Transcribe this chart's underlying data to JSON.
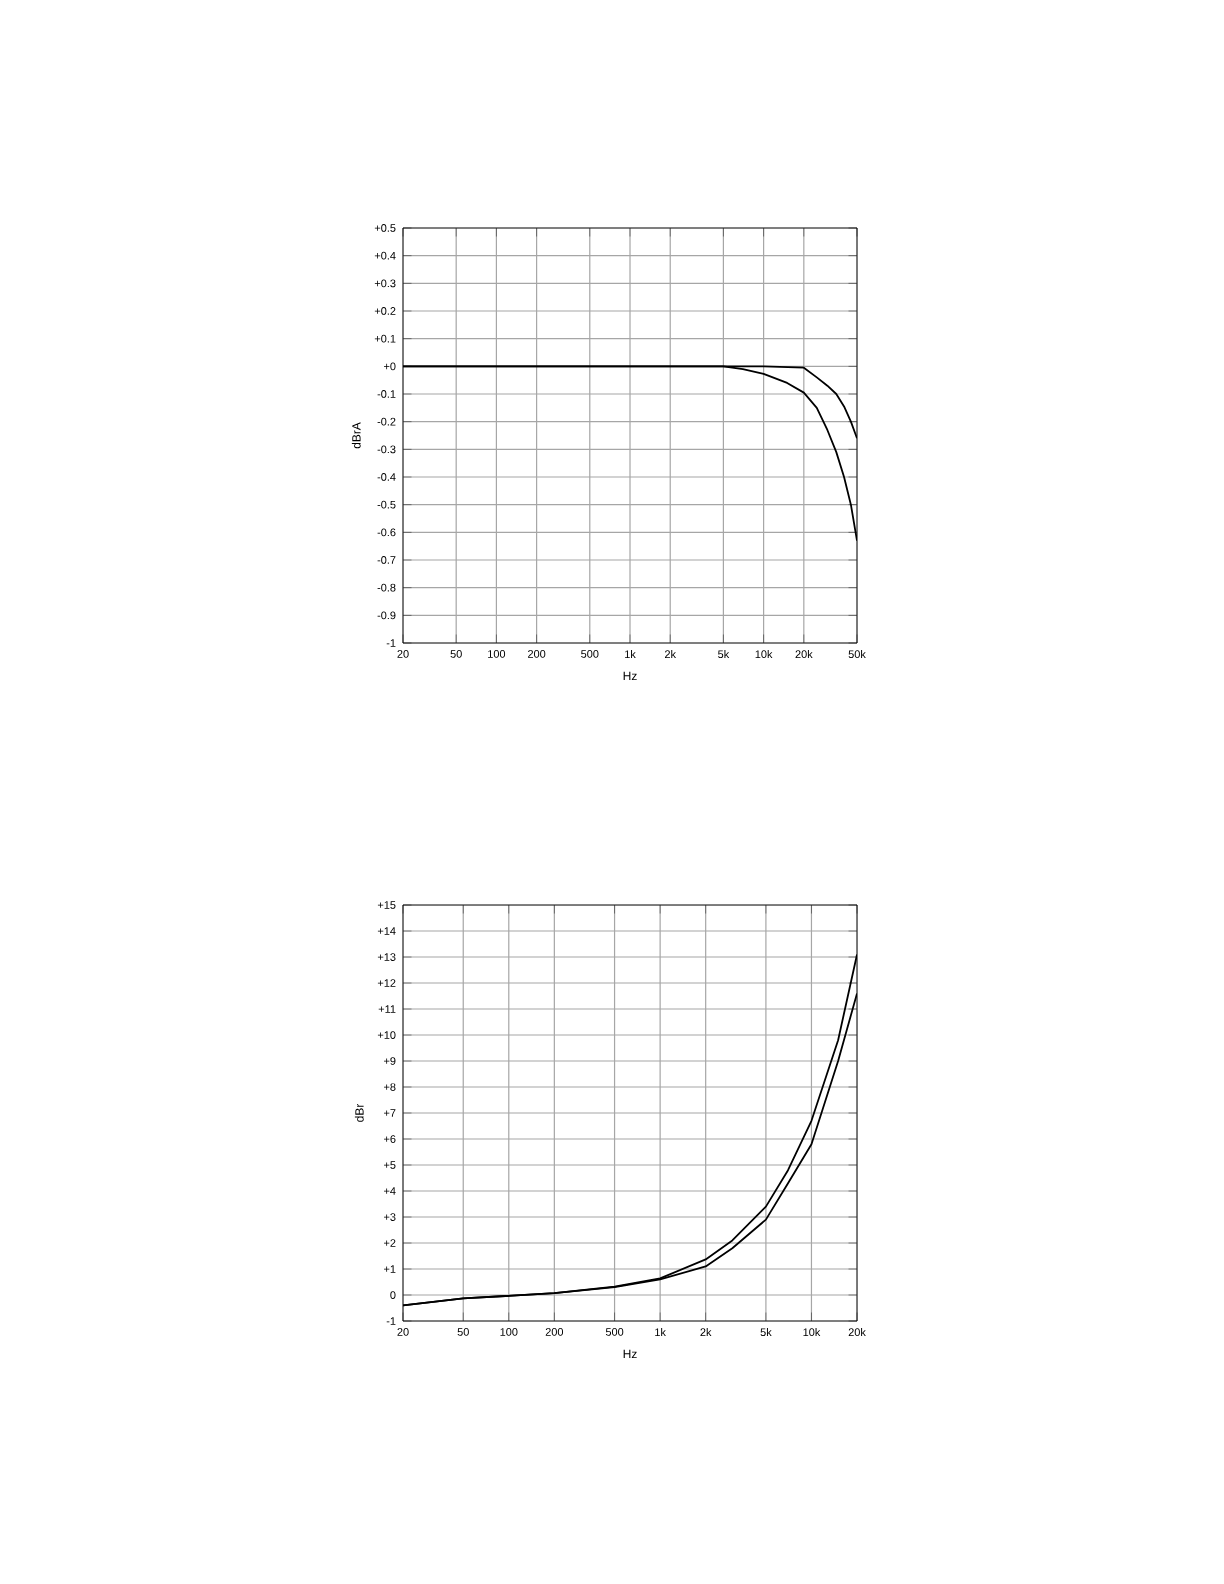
{
  "chart_data": [
    {
      "type": "line",
      "xlabel": "Hz",
      "ylabel": "dBrA",
      "log": "x",
      "grid": true,
      "line_style": "solid",
      "xlim": [
        20,
        50000
      ],
      "ylim": [
        -1,
        0.5
      ],
      "xticks": [
        20,
        50,
        100,
        200,
        500,
        {
          "value": 1000,
          "label": "1k"
        },
        {
          "value": 2000,
          "label": "2k"
        },
        {
          "value": 5000,
          "label": "5k"
        },
        {
          "value": 10000,
          "label": "10k"
        },
        {
          "value": 20000,
          "label": "20k"
        },
        {
          "value": 50000,
          "label": "50k"
        }
      ],
      "yticks": [
        {
          "value": 0.5,
          "label": "+0.5"
        },
        {
          "value": 0.4,
          "label": "+0.4"
        },
        {
          "value": 0.3,
          "label": "+0.3"
        },
        {
          "value": 0.2,
          "label": "+0.2"
        },
        {
          "value": 0.1,
          "label": "+0.1"
        },
        {
          "value": 0,
          "label": "+0"
        },
        -0.1,
        -0.2,
        -0.3,
        -0.4,
        -0.5,
        -0.6,
        -0.7,
        -0.8,
        -0.9,
        -1
      ],
      "series": [
        {
          "color": "#000000",
          "x": [
            20,
            100,
            1000,
            5000,
            7000,
            10000,
            15000,
            20000,
            25000,
            30000,
            35000,
            40000,
            45000,
            50000
          ],
          "values": [
            0,
            0,
            0,
            0,
            -0.01,
            -0.027,
            -0.06,
            -0.095,
            -0.15,
            -0.23,
            -0.31,
            -0.4,
            -0.5,
            -0.63
          ]
        },
        {
          "color": "#000000",
          "x": [
            20,
            1000,
            10000,
            20000,
            25000,
            30000,
            35000,
            40000,
            45000,
            50000
          ],
          "values": [
            0,
            0,
            0,
            -0.005,
            -0.04,
            -0.07,
            -0.1,
            -0.145,
            -0.2,
            -0.26
          ]
        }
      ]
    },
    {
      "type": "line",
      "xlabel": "Hz",
      "ylabel": "dBr",
      "log": "x",
      "grid": true,
      "line_style": "solid",
      "xlim": [
        20,
        20000
      ],
      "ylim": [
        -1,
        15
      ],
      "xticks": [
        20,
        50,
        100,
        200,
        500,
        {
          "value": 1000,
          "label": "1k"
        },
        {
          "value": 2000,
          "label": "2k"
        },
        {
          "value": 5000,
          "label": "5k"
        },
        {
          "value": 10000,
          "label": "10k"
        },
        {
          "value": 20000,
          "label": "20k"
        }
      ],
      "yticks": [
        {
          "value": 15,
          "label": "+15"
        },
        {
          "value": 14,
          "label": "+14"
        },
        {
          "value": 13,
          "label": "+13"
        },
        {
          "value": 12,
          "label": "+12"
        },
        {
          "value": 11,
          "label": "+11"
        },
        {
          "value": 10,
          "label": "+10"
        },
        {
          "value": 9,
          "label": "+9"
        },
        {
          "value": 8,
          "label": "+8"
        },
        {
          "value": 7,
          "label": "+7"
        },
        {
          "value": 6,
          "label": "+6"
        },
        {
          "value": 5,
          "label": "+5"
        },
        {
          "value": 4,
          "label": "+4"
        },
        {
          "value": 3,
          "label": "+3"
        },
        {
          "value": 2,
          "label": "+2"
        },
        {
          "value": 1,
          "label": "+1"
        },
        0,
        -1
      ],
      "series": [
        {
          "color": "#000000",
          "x": [
            20,
            50,
            100,
            200,
            500,
            1000,
            2000,
            3000,
            5000,
            7000,
            10000,
            15000,
            20000
          ],
          "values": [
            -0.4,
            -0.13,
            -0.03,
            0.07,
            0.32,
            0.64,
            1.37,
            2.1,
            3.4,
            4.8,
            6.7,
            9.8,
            13.1
          ]
        },
        {
          "color": "#000000",
          "x": [
            20,
            50,
            100,
            200,
            500,
            1000,
            2000,
            3000,
            5000,
            7000,
            10000,
            15000,
            20000
          ],
          "values": [
            -0.4,
            -0.13,
            -0.03,
            0.07,
            0.3,
            0.6,
            1.1,
            1.8,
            2.9,
            4.3,
            5.8,
            9.0,
            11.6
          ]
        }
      ]
    }
  ]
}
